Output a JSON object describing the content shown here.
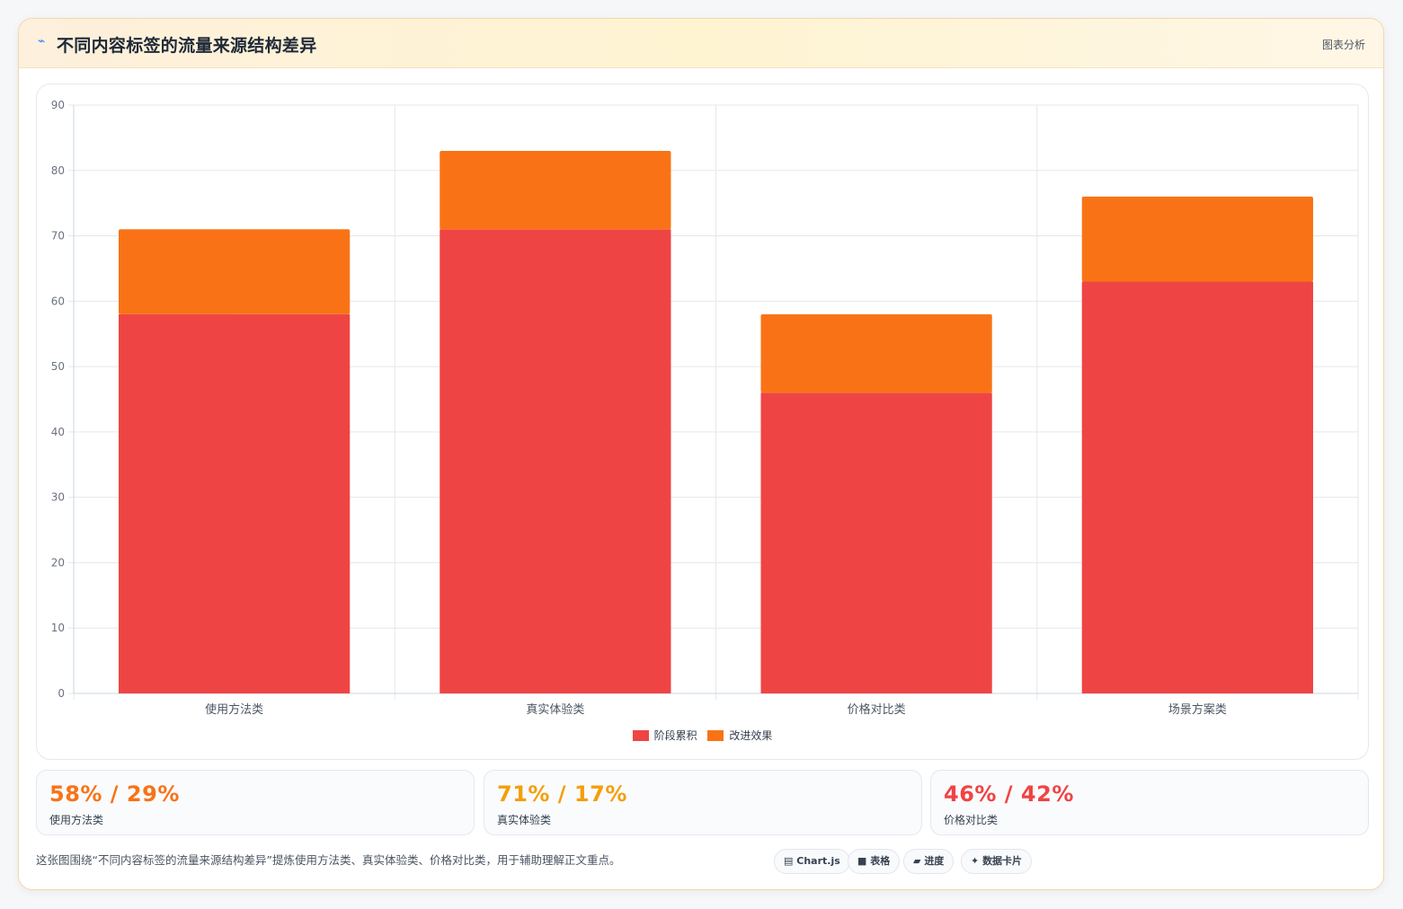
{
  "header": {
    "icon": "trend-line-icon",
    "title": "不同内容标签的流量来源结构差异",
    "tag": "图表分析"
  },
  "chart_data": {
    "type": "bar",
    "stacked": true,
    "categories": [
      "使用方法类",
      "真实体验类",
      "价格对比类",
      "场景方案类"
    ],
    "series": [
      {
        "name": "阶段累积",
        "color": "#ef4444",
        "values": [
          58,
          71,
          46,
          63
        ]
      },
      {
        "name": "改进效果",
        "color": "#f97316",
        "values": [
          13,
          12,
          12,
          13
        ]
      }
    ],
    "ylim": [
      0,
      90
    ],
    "yticks": [
      0,
      10,
      20,
      30,
      40,
      50,
      60,
      70,
      80,
      90
    ],
    "grid": true,
    "legend": "bottom-center"
  },
  "stats": [
    {
      "value": "58% / 29%",
      "label": "使用方法类",
      "color": "#f97316"
    },
    {
      "value": "71% / 17%",
      "label": "真实体验类",
      "color": "#f59e0b"
    },
    {
      "value": "46% / 42%",
      "label": "价格对比类",
      "color": "#ef4444"
    }
  ],
  "footer": {
    "summary": "这张图围绕“不同内容标签的流量来源结构差异”提炼使用方法类、真实体验类、价格对比类，用于辅助理解正文重点。",
    "pills": [
      {
        "icon": "chart-icon",
        "glyph": "▤",
        "label": "Chart.js"
      },
      {
        "icon": "table-icon",
        "glyph": "■",
        "label": "表格"
      },
      {
        "icon": "progress-icon",
        "glyph": "▰",
        "label": "进度"
      },
      {
        "icon": "sparkle-icon",
        "glyph": "✦",
        "label": "数据卡片"
      }
    ]
  }
}
